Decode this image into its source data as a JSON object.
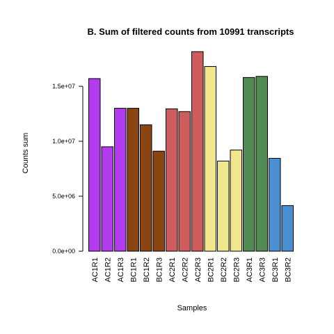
{
  "chart_data": {
    "type": "bar",
    "title": "B. Sum of filtered counts from 10991 transcripts",
    "xlabel": "Samples",
    "ylabel": "Counts sum",
    "ylim": [
      0,
      18500000
    ],
    "yticks": [
      0,
      5000000,
      10000000,
      15000000
    ],
    "ytick_labels": [
      "0.0e+00",
      "5.0e+06",
      "1.0e+07",
      "1.5e+07"
    ],
    "grid": false,
    "categories": [
      "AC1R1",
      "AC1R2",
      "AC1R3",
      "BC1R1",
      "BC1R2",
      "BC1R3",
      "AC2R1",
      "AC2R2",
      "AC2R3",
      "BC2R1",
      "BC2R2",
      "BC2R3",
      "AC3R1",
      "AC3R3",
      "BC3R1",
      "BC3R2"
    ],
    "values": [
      15700000,
      9500000,
      13000000,
      13000000,
      11500000,
      9100000,
      12950000,
      12700000,
      18150000,
      16800000,
      8200000,
      9200000,
      15800000,
      15900000,
      8450000,
      4150000
    ],
    "colors": [
      "#b23bed",
      "#b23bed",
      "#b23bed",
      "#8b4513",
      "#8b4513",
      "#8b4513",
      "#cd5c5c",
      "#cd5c5c",
      "#cd5c5c",
      "#f0e68c",
      "#f0e68c",
      "#f0e68c",
      "#548b54",
      "#548b54",
      "#4a90d0",
      "#4a90d0"
    ]
  }
}
